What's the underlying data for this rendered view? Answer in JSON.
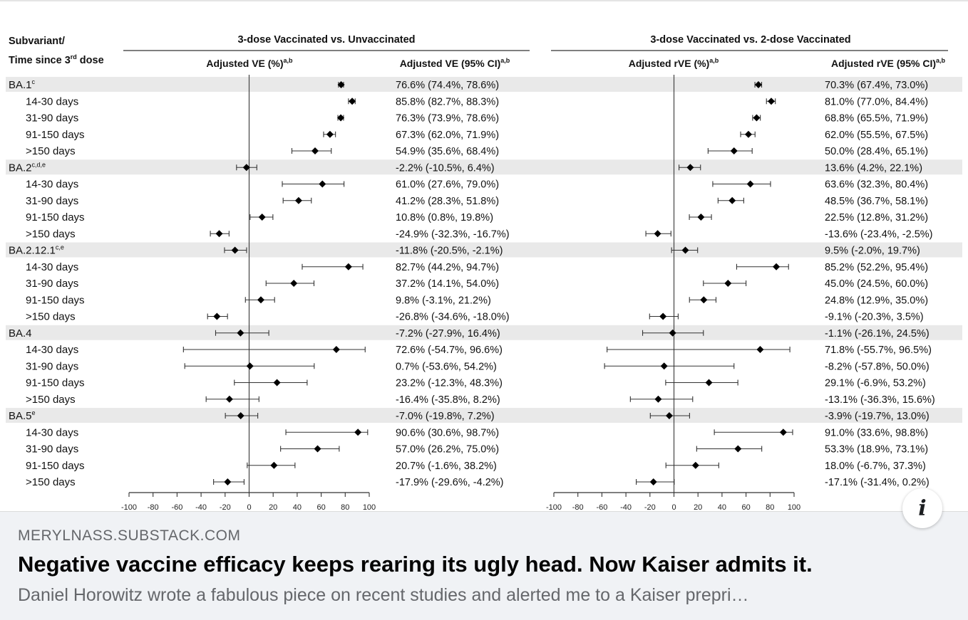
{
  "card": {
    "domain": "MERYLNASS.SUBSTACK.COM",
    "title": "Negative vaccine efficacy keeps rearing its ugly head. Now Kaiser admits it.",
    "description": "Daniel Horowitz wrote a fabulous piece on recent studies and alerted me to a Kaiser prepri…",
    "info_icon": "info-icon"
  },
  "chart_data": {
    "type": "forest",
    "row_header": [
      "Subvariant/",
      "Time since 3",
      "rd",
      " dose"
    ],
    "rows": [
      {
        "label": "BA.1",
        "sup": "c",
        "group": true
      },
      {
        "label": "14-30 days",
        "group": false
      },
      {
        "label": "31-90 days",
        "group": false
      },
      {
        "label": "91-150 days",
        "group": false
      },
      {
        "label": ">150 days",
        "group": false
      },
      {
        "label": "BA.2",
        "sup": "c,d,e",
        "group": true
      },
      {
        "label": "14-30 days",
        "group": false
      },
      {
        "label": "31-90 days",
        "group": false
      },
      {
        "label": "91-150 days",
        "group": false
      },
      {
        "label": ">150 days",
        "group": false
      },
      {
        "label": "BA.2.12.1",
        "sup": "c,e",
        "group": true
      },
      {
        "label": "14-30 days",
        "group": false
      },
      {
        "label": "31-90 days",
        "group": false
      },
      {
        "label": "91-150 days",
        "group": false
      },
      {
        "label": ">150 days",
        "group": false
      },
      {
        "label": "BA.4",
        "sup": "",
        "group": true
      },
      {
        "label": "14-30 days",
        "group": false
      },
      {
        "label": "31-90 days",
        "group": false
      },
      {
        "label": "91-150 days",
        "group": false
      },
      {
        "label": ">150 days",
        "group": false
      },
      {
        "label": "BA.5",
        "sup": "e",
        "group": true
      },
      {
        "label": "14-30 days",
        "group": false
      },
      {
        "label": "31-90 days",
        "group": false
      },
      {
        "label": "91-150 days",
        "group": false
      },
      {
        "label": ">150 days",
        "group": false
      }
    ],
    "xlim": [
      -100,
      100
    ],
    "ticks": [
      -100,
      -80,
      -60,
      -40,
      -20,
      0,
      20,
      40,
      60,
      80,
      100
    ],
    "panels": [
      {
        "header": "3-dose Vaccinated vs. Unvaccinated",
        "plot_label": "Adjusted VE (%)",
        "plot_label_sup": "a,b",
        "text_label": "Adjusted VE (95% CI)",
        "text_label_sup": "a,b",
        "estimates": [
          {
            "est": 76.6,
            "lo": 74.4,
            "hi": 78.6,
            "text": "76.6% (74.4%, 78.6%)"
          },
          {
            "est": 85.8,
            "lo": 82.7,
            "hi": 88.3,
            "text": "85.8% (82.7%, 88.3%)"
          },
          {
            "est": 76.3,
            "lo": 73.9,
            "hi": 78.6,
            "text": "76.3% (73.9%, 78.6%)"
          },
          {
            "est": 67.3,
            "lo": 62.0,
            "hi": 71.9,
            "text": "67.3% (62.0%, 71.9%)"
          },
          {
            "est": 54.9,
            "lo": 35.6,
            "hi": 68.4,
            "text": "54.9% (35.6%, 68.4%)"
          },
          {
            "est": -2.2,
            "lo": -10.5,
            "hi": 6.4,
            "text": "-2.2% (-10.5%, 6.4%)"
          },
          {
            "est": 61.0,
            "lo": 27.6,
            "hi": 79.0,
            "text": "61.0% (27.6%, 79.0%)"
          },
          {
            "est": 41.2,
            "lo": 28.3,
            "hi": 51.8,
            "text": "41.2% (28.3%, 51.8%)"
          },
          {
            "est": 10.8,
            "lo": 0.8,
            "hi": 19.8,
            "text": "10.8% (0.8%, 19.8%)"
          },
          {
            "est": -24.9,
            "lo": -32.3,
            "hi": -16.7,
            "text": "-24.9% (-32.3%, -16.7%)"
          },
          {
            "est": -11.8,
            "lo": -20.5,
            "hi": -2.1,
            "text": "-11.8% (-20.5%, -2.1%)"
          },
          {
            "est": 82.7,
            "lo": 44.2,
            "hi": 94.7,
            "text": "82.7% (44.2%, 94.7%)"
          },
          {
            "est": 37.2,
            "lo": 14.1,
            "hi": 54.0,
            "text": "37.2% (14.1%, 54.0%)"
          },
          {
            "est": 9.8,
            "lo": -3.1,
            "hi": 21.2,
            "text": "9.8% (-3.1%, 21.2%)"
          },
          {
            "est": -26.8,
            "lo": -34.6,
            "hi": -18.0,
            "text": "-26.8% (-34.6%, -18.0%)"
          },
          {
            "est": -7.2,
            "lo": -27.9,
            "hi": 16.4,
            "text": "-7.2% (-27.9%, 16.4%)"
          },
          {
            "est": 72.6,
            "lo": -54.7,
            "hi": 96.6,
            "text": "72.6% (-54.7%, 96.6%)"
          },
          {
            "est": 0.7,
            "lo": -53.6,
            "hi": 54.2,
            "text": "0.7% (-53.6%, 54.2%)"
          },
          {
            "est": 23.2,
            "lo": -12.3,
            "hi": 48.3,
            "text": "23.2% (-12.3%, 48.3%)"
          },
          {
            "est": -16.4,
            "lo": -35.8,
            "hi": 8.2,
            "text": "-16.4% (-35.8%, 8.2%)"
          },
          {
            "est": -7.0,
            "lo": -19.8,
            "hi": 7.2,
            "text": "-7.0% (-19.8%, 7.2%)"
          },
          {
            "est": 90.6,
            "lo": 30.6,
            "hi": 98.7,
            "text": "90.6% (30.6%, 98.7%)"
          },
          {
            "est": 57.0,
            "lo": 26.2,
            "hi": 75.0,
            "text": "57.0% (26.2%, 75.0%)"
          },
          {
            "est": 20.7,
            "lo": -1.6,
            "hi": 38.2,
            "text": "20.7% (-1.6%, 38.2%)"
          },
          {
            "est": -17.9,
            "lo": -29.6,
            "hi": -4.2,
            "text": "-17.9% (-29.6%, -4.2%)"
          }
        ]
      },
      {
        "header": "3-dose Vaccinated vs. 2-dose Vaccinated",
        "plot_label": "Adjusted rVE (%)",
        "plot_label_sup": "a,b",
        "text_label": "Adjusted rVE (95% CI)",
        "text_label_sup": "a,b",
        "estimates": [
          {
            "est": 70.3,
            "lo": 67.4,
            "hi": 73.0,
            "text": "70.3% (67.4%, 73.0%)"
          },
          {
            "est": 81.0,
            "lo": 77.0,
            "hi": 84.4,
            "text": "81.0% (77.0%, 84.4%)"
          },
          {
            "est": 68.8,
            "lo": 65.5,
            "hi": 71.9,
            "text": "68.8% (65.5%, 71.9%)"
          },
          {
            "est": 62.0,
            "lo": 55.5,
            "hi": 67.5,
            "text": "62.0% (55.5%, 67.5%)"
          },
          {
            "est": 50.0,
            "lo": 28.4,
            "hi": 65.1,
            "text": "50.0% (28.4%, 65.1%)"
          },
          {
            "est": 13.6,
            "lo": 4.2,
            "hi": 22.1,
            "text": "13.6% (4.2%, 22.1%)"
          },
          {
            "est": 63.6,
            "lo": 32.3,
            "hi": 80.4,
            "text": "63.6% (32.3%, 80.4%)"
          },
          {
            "est": 48.5,
            "lo": 36.7,
            "hi": 58.1,
            "text": "48.5% (36.7%, 58.1%)"
          },
          {
            "est": 22.5,
            "lo": 12.8,
            "hi": 31.2,
            "text": "22.5% (12.8%, 31.2%)"
          },
          {
            "est": -13.6,
            "lo": -23.4,
            "hi": -2.5,
            "text": "-13.6% (-23.4%, -2.5%)"
          },
          {
            "est": 9.5,
            "lo": -2.0,
            "hi": 19.7,
            "text": "9.5% (-2.0%, 19.7%)"
          },
          {
            "est": 85.2,
            "lo": 52.2,
            "hi": 95.4,
            "text": "85.2% (52.2%, 95.4%)"
          },
          {
            "est": 45.0,
            "lo": 24.5,
            "hi": 60.0,
            "text": "45.0% (24.5%, 60.0%)"
          },
          {
            "est": 24.8,
            "lo": 12.9,
            "hi": 35.0,
            "text": "24.8% (12.9%, 35.0%)"
          },
          {
            "est": -9.1,
            "lo": -20.3,
            "hi": 3.5,
            "text": "-9.1% (-20.3%, 3.5%)"
          },
          {
            "est": -1.1,
            "lo": -26.1,
            "hi": 24.5,
            "text": "-1.1% (-26.1%, 24.5%)"
          },
          {
            "est": 71.8,
            "lo": -55.7,
            "hi": 96.5,
            "text": "71.8% (-55.7%, 96.5%)"
          },
          {
            "est": -8.2,
            "lo": -57.8,
            "hi": 50.0,
            "text": "-8.2% (-57.8%, 50.0%)"
          },
          {
            "est": 29.1,
            "lo": -6.9,
            "hi": 53.2,
            "text": "29.1% (-6.9%, 53.2%)"
          },
          {
            "est": -13.1,
            "lo": -36.3,
            "hi": 15.6,
            "text": "-13.1% (-36.3%, 15.6%)"
          },
          {
            "est": -3.9,
            "lo": -19.7,
            "hi": 13.0,
            "text": "-3.9% (-19.7%, 13.0%)"
          },
          {
            "est": 91.0,
            "lo": 33.6,
            "hi": 98.8,
            "text": "91.0% (33.6%, 98.8%)"
          },
          {
            "est": 53.3,
            "lo": 18.9,
            "hi": 73.1,
            "text": "53.3% (18.9%, 73.1%)"
          },
          {
            "est": 18.0,
            "lo": -6.7,
            "hi": 37.3,
            "text": "18.0% (-6.7%, 37.3%)"
          },
          {
            "est": -17.1,
            "lo": -31.4,
            "hi": 0.2,
            "text": "-17.1% (-31.4%, 0.2%)"
          }
        ]
      }
    ]
  }
}
